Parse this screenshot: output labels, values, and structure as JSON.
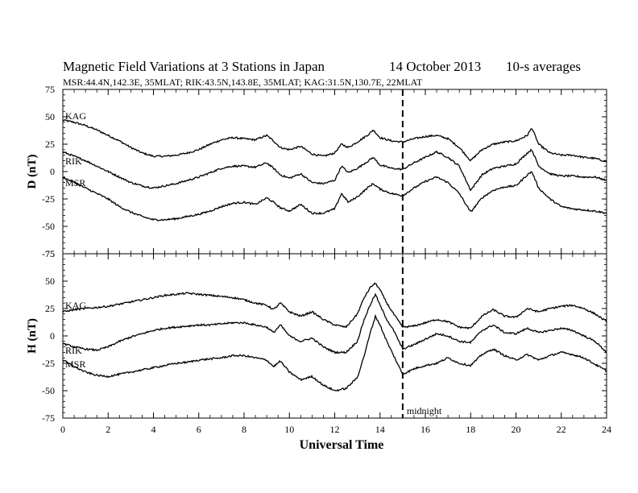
{
  "chart_data": {
    "type": "line",
    "title": "Magnetic Field Variations at 3 Stations in Japan",
    "date": "14 October 2013",
    "averaging": "10-s averages",
    "subtitle": "MSR:44.4N,142.3E, 35MLAT;  RIK:43.5N,143.8E, 35MLAT;  KAG:31.5N,130.7E, 22MLAT",
    "xlabel": "Universal Time",
    "xlim": [
      0,
      24
    ],
    "x_ticks": [
      0,
      2,
      4,
      6,
      8,
      10,
      12,
      14,
      16,
      18,
      20,
      22,
      24
    ],
    "marker": {
      "x": 15,
      "label": "midnight"
    },
    "panels": [
      {
        "ylabel": "D (nT)",
        "ylim": [
          -75,
          75
        ],
        "y_ticks": [
          -75,
          -50,
          -25,
          0,
          25,
          50,
          75
        ],
        "series": [
          {
            "name": "KAG",
            "x": [
              0,
              0.5,
              1,
              1.5,
              2,
              2.5,
              3,
              3.5,
              4,
              4.5,
              5,
              5.5,
              6,
              6.5,
              7,
              7.5,
              8,
              8.5,
              9,
              9.3,
              9.6,
              10,
              10.5,
              11,
              11.5,
              12,
              12.3,
              12.6,
              13,
              13.5,
              13.7,
              14,
              14.5,
              15,
              15.5,
              16,
              16.5,
              17,
              17.5,
              18,
              18.5,
              19,
              19.5,
              20,
              20.5,
              20.7,
              21,
              21.5,
              22,
              22.5,
              23,
              23.5,
              24
            ],
            "y": [
              47,
              45,
              42,
              38,
              33,
              28,
              22,
              17,
              14,
              14,
              15,
              17,
              20,
              25,
              29,
              31,
              30,
              29,
              33,
              28,
              22,
              20,
              23,
              16,
              14,
              17,
              25,
              22,
              27,
              34,
              38,
              31,
              28,
              27,
              30,
              32,
              33,
              30,
              22,
              10,
              20,
              25,
              27,
              28,
              33,
              40,
              25,
              17,
              15,
              15,
              13,
              12,
              9
            ]
          },
          {
            "name": "RIK",
            "x": [
              0,
              0.5,
              1,
              1.5,
              2,
              2.5,
              3,
              3.5,
              4,
              4.5,
              5,
              5.5,
              6,
              6.5,
              7,
              7.5,
              8,
              8.5,
              9,
              9.3,
              9.6,
              10,
              10.5,
              11,
              11.5,
              12,
              12.3,
              12.6,
              13,
              13.5,
              13.7,
              14,
              14.5,
              15,
              15.5,
              16,
              16.5,
              17,
              17.5,
              18,
              18.5,
              19,
              19.5,
              20,
              20.5,
              20.7,
              21,
              21.5,
              22,
              22.5,
              23,
              23.5,
              24
            ],
            "y": [
              18,
              14,
              10,
              5,
              0,
              -5,
              -10,
              -13,
              -15,
              -13,
              -11,
              -8,
              -5,
              -1,
              3,
              5,
              5,
              4,
              8,
              3,
              -3,
              -6,
              -2,
              -10,
              -11,
              -8,
              5,
              -1,
              3,
              10,
              13,
              6,
              3,
              2,
              8,
              13,
              18,
              13,
              5,
              -17,
              -3,
              3,
              5,
              7,
              17,
              20,
              5,
              -2,
              -4,
              -4,
              -5,
              -5,
              -8
            ]
          },
          {
            "name": "MSR",
            "x": [
              0,
              0.5,
              1,
              1.5,
              2,
              2.5,
              3,
              3.5,
              4,
              4.5,
              5,
              5.5,
              6,
              6.5,
              7,
              7.5,
              8,
              8.5,
              9,
              9.3,
              9.6,
              10,
              10.5,
              11,
              11.5,
              12,
              12.3,
              12.6,
              13,
              13.5,
              13.7,
              14,
              14.5,
              15,
              15.5,
              16,
              16.5,
              17,
              17.5,
              18,
              18.5,
              19,
              19.5,
              20,
              20.5,
              20.7,
              21,
              21.5,
              22,
              22.5,
              23,
              23.5,
              24
            ],
            "y": [
              -5,
              -10,
              -15,
              -20,
              -25,
              -32,
              -37,
              -41,
              -44,
              -44,
              -43,
              -41,
              -39,
              -36,
              -32,
              -29,
              -28,
              -30,
              -24,
              -28,
              -33,
              -36,
              -30,
              -38,
              -38,
              -34,
              -20,
              -28,
              -23,
              -14,
              -11,
              -16,
              -20,
              -22,
              -15,
              -9,
              -5,
              -10,
              -20,
              -37,
              -24,
              -17,
              -14,
              -13,
              -3,
              0,
              -15,
              -25,
              -32,
              -34,
              -35,
              -36,
              -38
            ]
          }
        ]
      },
      {
        "ylabel": "H (nT)",
        "ylim": [
          -75,
          75
        ],
        "y_ticks": [
          -75,
          -50,
          -25,
          0,
          25,
          50,
          75
        ],
        "series": [
          {
            "name": "KAG",
            "x": [
              0,
              0.5,
              1,
              1.5,
              2,
              2.5,
              3,
              3.5,
              4,
              4.5,
              5,
              5.5,
              6,
              6.5,
              7,
              7.5,
              8,
              8.5,
              9,
              9.3,
              9.6,
              10,
              10.5,
              11,
              11.5,
              12,
              12.5,
              13,
              13.3,
              13.6,
              13.8,
              14,
              14.3,
              14.6,
              15,
              15.5,
              16,
              16.5,
              17,
              17.5,
              18,
              18.5,
              19,
              19.5,
              20,
              20.5,
              21,
              21.5,
              22,
              22.5,
              23,
              23.5,
              24
            ],
            "y": [
              22,
              24,
              25,
              26,
              27,
              29,
              31,
              33,
              35,
              37,
              38,
              39,
              38,
              37,
              36,
              35,
              33,
              30,
              28,
              24,
              30,
              22,
              18,
              22,
              15,
              10,
              8,
              20,
              35,
              45,
              48,
              42,
              30,
              20,
              8,
              9,
              12,
              15,
              13,
              8,
              7,
              18,
              24,
              18,
              17,
              25,
              22,
              25,
              27,
              28,
              25,
              20,
              13
            ]
          },
          {
            "name": "RIK",
            "x": [
              0,
              0.5,
              1,
              1.5,
              2,
              2.5,
              3,
              3.5,
              4,
              4.5,
              5,
              5.5,
              6,
              6.5,
              7,
              7.5,
              8,
              8.5,
              9,
              9.3,
              9.6,
              10,
              10.5,
              11,
              11.5,
              12,
              12.5,
              13,
              13.3,
              13.6,
              13.8,
              14,
              14.3,
              14.6,
              15,
              15.5,
              16,
              16.5,
              17,
              17.5,
              18,
              18.5,
              19,
              19.5,
              20,
              20.5,
              21,
              21.5,
              22,
              22.5,
              23,
              23.5,
              24
            ],
            "y": [
              -7,
              -10,
              -12,
              -13,
              -10,
              -5,
              -1,
              2,
              5,
              7,
              8,
              9,
              10,
              10,
              11,
              12,
              12,
              10,
              8,
              3,
              10,
              0,
              -5,
              -2,
              -10,
              -15,
              -15,
              -5,
              15,
              30,
              38,
              28,
              15,
              5,
              -12,
              -8,
              -3,
              2,
              0,
              -5,
              -6,
              5,
              10,
              3,
              2,
              7,
              3,
              5,
              7,
              5,
              0,
              -5,
              -15
            ]
          },
          {
            "name": "MSR",
            "x": [
              0,
              0.5,
              1,
              1.5,
              2,
              2.5,
              3,
              3.5,
              4,
              4.5,
              5,
              5.5,
              6,
              6.5,
              7,
              7.5,
              8,
              8.5,
              9,
              9.3,
              9.6,
              10,
              10.5,
              11,
              11.5,
              12,
              12.5,
              13,
              13.3,
              13.6,
              13.8,
              14,
              14.3,
              14.6,
              15,
              15.5,
              16,
              16.5,
              17,
              17.5,
              18,
              18.5,
              19,
              19.5,
              20,
              20.5,
              21,
              21.5,
              22,
              22.5,
              23,
              23.5,
              24
            ],
            "y": [
              -22,
              -28,
              -33,
              -36,
              -37,
              -35,
              -33,
              -31,
              -29,
              -27,
              -25,
              -24,
              -22,
              -21,
              -20,
              -18,
              -18,
              -20,
              -22,
              -28,
              -23,
              -33,
              -40,
              -37,
              -45,
              -50,
              -48,
              -38,
              -18,
              5,
              18,
              10,
              -5,
              -18,
              -35,
              -30,
              -27,
              -25,
              -20,
              -25,
              -27,
              -17,
              -12,
              -18,
              -22,
              -17,
              -22,
              -18,
              -15,
              -17,
              -20,
              -26,
              -32
            ]
          }
        ]
      }
    ]
  }
}
